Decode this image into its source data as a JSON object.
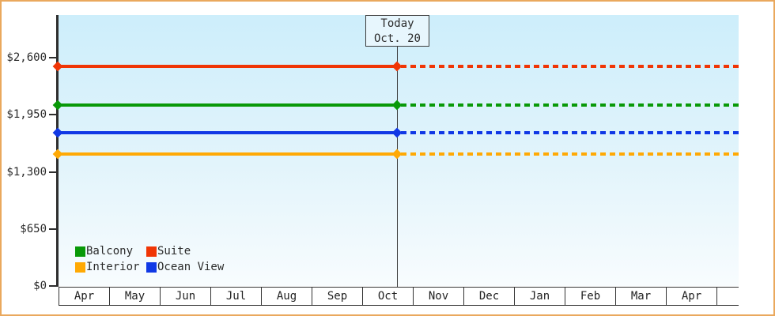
{
  "frame": {
    "border_color": "#eaa85d"
  },
  "legend": {
    "items": [
      {
        "label": "Balcony",
        "color": "#089908"
      },
      {
        "label": "Suite",
        "color": "#f03505"
      },
      {
        "label": "Interior",
        "color": "#ffa904"
      },
      {
        "label": "Ocean View",
        "color": "#1038e5"
      }
    ]
  },
  "chart_data": {
    "type": "line",
    "title": "",
    "xlabel": "",
    "ylabel": "",
    "unit": "USD",
    "x_categories": [
      "Apr",
      "May",
      "Jun",
      "Jul",
      "Aug",
      "Sep",
      "Oct",
      "Nov",
      "Dec",
      "Jan",
      "Feb",
      "Mar",
      "Apr"
    ],
    "y_ticks": [
      {
        "label": "$0",
        "value": 0
      },
      {
        "label": "$650",
        "value": 650
      },
      {
        "label": "$1,300",
        "value": 1300
      },
      {
        "label": "$1,950",
        "value": 1950
      },
      {
        "label": "$2,600",
        "value": 2600
      }
    ],
    "ylim": [
      0,
      3090
    ],
    "grid": false,
    "legend_position": "inside-bottom-left",
    "series": [
      {
        "name": "Suite",
        "color": "#f03505",
        "price": 2500,
        "style_before_today": "solid",
        "style_after_today": "dashed"
      },
      {
        "name": "Balcony",
        "color": "#089908",
        "price": 2060,
        "style_before_today": "solid",
        "style_after_today": "dashed"
      },
      {
        "name": "Ocean View",
        "color": "#1038e5",
        "price": 1745,
        "style_before_today": "solid",
        "style_after_today": "dashed"
      },
      {
        "name": "Interior",
        "color": "#ffa904",
        "price": 1500,
        "style_before_today": "solid",
        "style_after_today": "dashed"
      }
    ],
    "today": {
      "title": "Today",
      "date": "Oct. 20",
      "month": "Oct",
      "day": 20
    }
  }
}
